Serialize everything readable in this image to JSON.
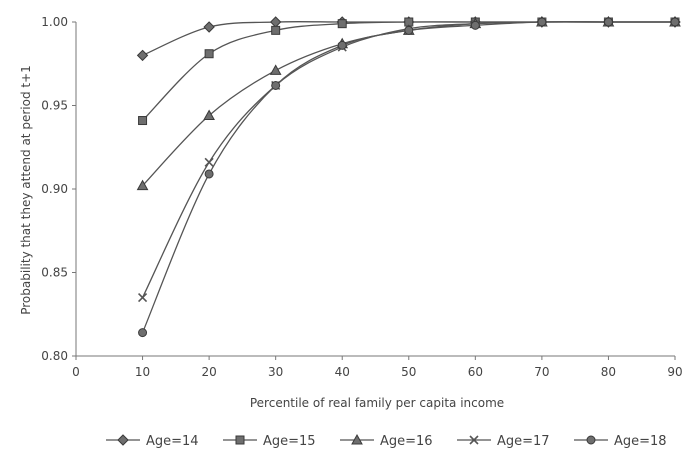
{
  "chart_data": {
    "type": "line",
    "xlabel": "Percentile of real family per capita income",
    "ylabel": "Probability that they attend at period t+1",
    "xlim": [
      0,
      90
    ],
    "ylim": [
      0.8,
      1.0
    ],
    "x_ticks": [
      "0",
      "10",
      "20",
      "30",
      "40",
      "50",
      "60",
      "70",
      "80",
      "90"
    ],
    "y_ticks": [
      "0.80",
      "0.85",
      "0.90",
      "0.95",
      "1.00"
    ],
    "grid": false,
    "legend_position": "bottom",
    "x": [
      10,
      20,
      30,
      40,
      50,
      60,
      70,
      80,
      90
    ],
    "series": [
      {
        "name": "Age=14",
        "marker": "diamond",
        "values": [
          0.98,
          0.997,
          1.0,
          1.0,
          1.0,
          1.0,
          1.0,
          1.0,
          1.0
        ]
      },
      {
        "name": "Age=15",
        "marker": "square",
        "values": [
          0.941,
          0.981,
          0.995,
          0.999,
          1.0,
          1.0,
          1.0,
          1.0,
          1.0
        ]
      },
      {
        "name": "Age=16",
        "marker": "triangle",
        "values": [
          0.902,
          0.944,
          0.971,
          0.987,
          0.995,
          0.999,
          1.0,
          1.0,
          1.0
        ]
      },
      {
        "name": "Age=17",
        "marker": "x",
        "values": [
          0.835,
          0.916,
          0.962,
          0.985,
          0.996,
          0.999,
          1.0,
          1.0,
          1.0
        ]
      },
      {
        "name": "Age=18",
        "marker": "circle",
        "values": [
          0.814,
          0.909,
          0.962,
          0.986,
          0.995,
          0.998,
          1.0,
          1.0,
          1.0
        ]
      }
    ]
  }
}
